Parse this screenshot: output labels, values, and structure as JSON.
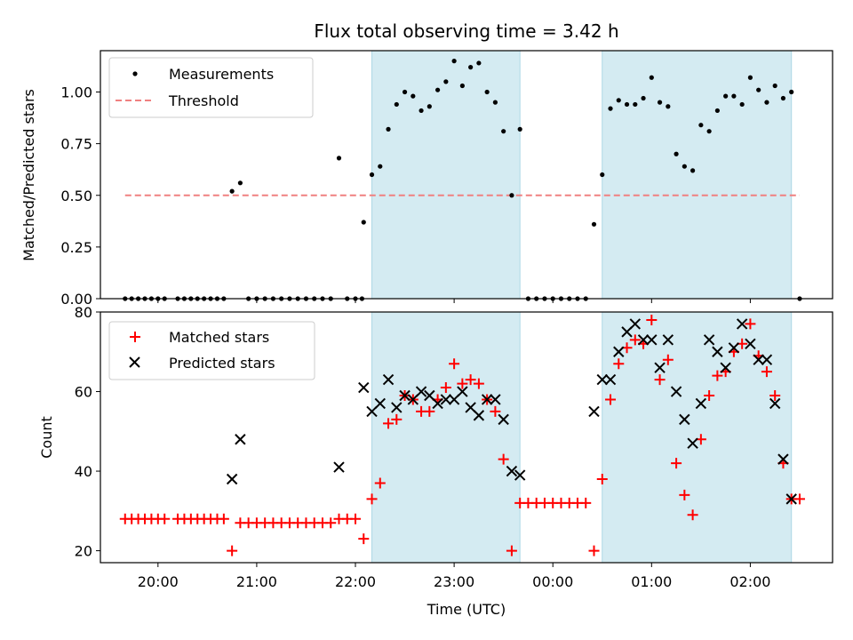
{
  "chart_data": {
    "title": "Flux total observing time = 3.42 h",
    "xlabel": "Time (UTC)",
    "x_ticks": [
      "20:00",
      "21:00",
      "22:00",
      "23:00",
      "00:00",
      "01:00",
      "02:00"
    ],
    "xlim": [
      "19:25",
      "02:50"
    ],
    "shaded_intervals": [
      [
        "22:10",
        "23:40"
      ],
      [
        "00:30",
        "02:25"
      ]
    ],
    "colors": {
      "shade": "#add8e6",
      "measurements": "#000000",
      "threshold": "#f08080",
      "matched": "#ff0000",
      "predicted": "#000000"
    },
    "panels": [
      {
        "type": "scatter",
        "ylabel": "Matched/Predicted stars",
        "ylim": [
          0,
          1.2
        ],
        "y_ticks": [
          "0.00",
          "0.25",
          "0.50",
          "0.75",
          "1.00"
        ],
        "legend_position": "upper-left",
        "series": [
          {
            "name": "Measurements",
            "marker": "dot",
            "points": [
              [
                "19:40",
                0
              ],
              [
                "19:44",
                0
              ],
              [
                "19:48",
                0
              ],
              [
                "19:52",
                0
              ],
              [
                "19:56",
                0
              ],
              [
                "20:00",
                0
              ],
              [
                "20:04",
                0
              ],
              [
                "20:12",
                0
              ],
              [
                "20:16",
                0
              ],
              [
                "20:20",
                0
              ],
              [
                "20:24",
                0
              ],
              [
                "20:28",
                0
              ],
              [
                "20:32",
                0
              ],
              [
                "20:36",
                0
              ],
              [
                "20:40",
                0
              ],
              [
                "20:45",
                0.52
              ],
              [
                "20:50",
                0.56
              ],
              [
                "20:55",
                0
              ],
              [
                "21:00",
                0
              ],
              [
                "21:05",
                0
              ],
              [
                "21:10",
                0
              ],
              [
                "21:15",
                0
              ],
              [
                "21:20",
                0
              ],
              [
                "21:25",
                0
              ],
              [
                "21:30",
                0
              ],
              [
                "21:35",
                0
              ],
              [
                "21:40",
                0
              ],
              [
                "21:45",
                0
              ],
              [
                "21:50",
                0.68
              ],
              [
                "21:55",
                0
              ],
              [
                "22:00",
                0
              ],
              [
                "22:04",
                0
              ],
              [
                "22:05",
                0.37
              ],
              [
                "22:10",
                0.6
              ],
              [
                "22:15",
                0.64
              ],
              [
                "22:20",
                0.82
              ],
              [
                "22:25",
                0.94
              ],
              [
                "22:30",
                1.0
              ],
              [
                "22:35",
                0.98
              ],
              [
                "22:40",
                0.91
              ],
              [
                "22:45",
                0.93
              ],
              [
                "22:50",
                1.01
              ],
              [
                "22:55",
                1.05
              ],
              [
                "23:00",
                1.15
              ],
              [
                "23:05",
                1.03
              ],
              [
                "23:10",
                1.12
              ],
              [
                "23:15",
                1.14
              ],
              [
                "23:20",
                1.0
              ],
              [
                "23:25",
                0.95
              ],
              [
                "23:30",
                0.81
              ],
              [
                "23:35",
                0.5
              ],
              [
                "23:40",
                0.82
              ],
              [
                "23:45",
                0
              ],
              [
                "23:50",
                0
              ],
              [
                "23:55",
                0
              ],
              [
                "00:00",
                0
              ],
              [
                "00:05",
                0
              ],
              [
                "00:10",
                0
              ],
              [
                "00:15",
                0
              ],
              [
                "00:20",
                0
              ],
              [
                "00:25",
                0.36
              ],
              [
                "00:30",
                0.6
              ],
              [
                "00:35",
                0.92
              ],
              [
                "00:40",
                0.96
              ],
              [
                "00:45",
                0.94
              ],
              [
                "00:50",
                0.94
              ],
              [
                "00:55",
                0.97
              ],
              [
                "01:00",
                1.07
              ],
              [
                "01:05",
                0.95
              ],
              [
                "01:10",
                0.93
              ],
              [
                "01:15",
                0.7
              ],
              [
                "01:20",
                0.64
              ],
              [
                "01:25",
                0.62
              ],
              [
                "01:30",
                0.84
              ],
              [
                "01:35",
                0.81
              ],
              [
                "01:40",
                0.91
              ],
              [
                "01:45",
                0.98
              ],
              [
                "01:50",
                0.98
              ],
              [
                "01:55",
                0.94
              ],
              [
                "02:00",
                1.07
              ],
              [
                "02:05",
                1.01
              ],
              [
                "02:10",
                0.95
              ],
              [
                "02:15",
                1.03
              ],
              [
                "02:20",
                0.97
              ],
              [
                "02:25",
                1.0
              ],
              [
                "02:30",
                0
              ]
            ]
          },
          {
            "name": "Threshold",
            "line": "dashed",
            "points": [
              [
                "19:40",
                0.5
              ],
              [
                "02:30",
                0.5
              ]
            ]
          }
        ]
      },
      {
        "type": "scatter",
        "ylabel": "Count",
        "ylim": [
          17,
          80
        ],
        "y_ticks": [
          "20",
          "40",
          "60",
          "80"
        ],
        "legend_position": "upper-left",
        "series": [
          {
            "name": "Matched stars",
            "marker": "plus",
            "points": [
              [
                "19:40",
                28
              ],
              [
                "19:44",
                28
              ],
              [
                "19:48",
                28
              ],
              [
                "19:52",
                28
              ],
              [
                "19:56",
                28
              ],
              [
                "20:00",
                28
              ],
              [
                "20:04",
                28
              ],
              [
                "20:12",
                28
              ],
              [
                "20:16",
                28
              ],
              [
                "20:20",
                28
              ],
              [
                "20:24",
                28
              ],
              [
                "20:28",
                28
              ],
              [
                "20:32",
                28
              ],
              [
                "20:36",
                28
              ],
              [
                "20:40",
                28
              ],
              [
                "20:45",
                20
              ],
              [
                "20:50",
                27
              ],
              [
                "20:55",
                27
              ],
              [
                "21:00",
                27
              ],
              [
                "21:05",
                27
              ],
              [
                "21:10",
                27
              ],
              [
                "21:15",
                27
              ],
              [
                "21:20",
                27
              ],
              [
                "21:25",
                27
              ],
              [
                "21:30",
                27
              ],
              [
                "21:35",
                27
              ],
              [
                "21:40",
                27
              ],
              [
                "21:45",
                27
              ],
              [
                "21:50",
                28
              ],
              [
                "21:55",
                28
              ],
              [
                "22:00",
                28
              ],
              [
                "22:05",
                23
              ],
              [
                "22:10",
                33
              ],
              [
                "22:15",
                37
              ],
              [
                "22:20",
                52
              ],
              [
                "22:25",
                53
              ],
              [
                "22:30",
                59
              ],
              [
                "22:35",
                58
              ],
              [
                "22:40",
                55
              ],
              [
                "22:45",
                55
              ],
              [
                "22:50",
                58
              ],
              [
                "22:55",
                61
              ],
              [
                "23:00",
                67
              ],
              [
                "23:05",
                62
              ],
              [
                "23:10",
                63
              ],
              [
                "23:15",
                62
              ],
              [
                "23:20",
                58
              ],
              [
                "23:25",
                55
              ],
              [
                "23:30",
                43
              ],
              [
                "23:35",
                20
              ],
              [
                "23:40",
                32
              ],
              [
                "23:45",
                32
              ],
              [
                "23:50",
                32
              ],
              [
                "23:55",
                32
              ],
              [
                "00:00",
                32
              ],
              [
                "00:05",
                32
              ],
              [
                "00:10",
                32
              ],
              [
                "00:15",
                32
              ],
              [
                "00:20",
                32
              ],
              [
                "00:25",
                20
              ],
              [
                "00:30",
                38
              ],
              [
                "00:35",
                58
              ],
              [
                "00:40",
                67
              ],
              [
                "00:45",
                71
              ],
              [
                "00:50",
                73
              ],
              [
                "00:55",
                72
              ],
              [
                "01:00",
                78
              ],
              [
                "01:05",
                63
              ],
              [
                "01:10",
                68
              ],
              [
                "01:15",
                42
              ],
              [
                "01:20",
                34
              ],
              [
                "01:25",
                29
              ],
              [
                "01:30",
                48
              ],
              [
                "01:35",
                59
              ],
              [
                "01:40",
                64
              ],
              [
                "01:45",
                65
              ],
              [
                "01:50",
                70
              ],
              [
                "01:55",
                72
              ],
              [
                "02:00",
                77
              ],
              [
                "02:05",
                69
              ],
              [
                "02:10",
                65
              ],
              [
                "02:15",
                59
              ],
              [
                "02:20",
                42
              ],
              [
                "02:25",
                33
              ],
              [
                "02:30",
                33
              ]
            ]
          },
          {
            "name": "Predicted stars",
            "marker": "x",
            "points": [
              [
                "20:45",
                38
              ],
              [
                "20:50",
                48
              ],
              [
                "21:50",
                41
              ],
              [
                "22:05",
                61
              ],
              [
                "22:10",
                55
              ],
              [
                "22:15",
                57
              ],
              [
                "22:20",
                63
              ],
              [
                "22:25",
                56
              ],
              [
                "22:30",
                59
              ],
              [
                "22:35",
                58
              ],
              [
                "22:40",
                60
              ],
              [
                "22:45",
                59
              ],
              [
                "22:50",
                57
              ],
              [
                "22:55",
                58
              ],
              [
                "23:00",
                58
              ],
              [
                "23:05",
                60
              ],
              [
                "23:10",
                56
              ],
              [
                "23:15",
                54
              ],
              [
                "23:20",
                58
              ],
              [
                "23:25",
                58
              ],
              [
                "23:30",
                53
              ],
              [
                "23:35",
                40
              ],
              [
                "23:40",
                39
              ],
              [
                "00:25",
                55
              ],
              [
                "00:30",
                63
              ],
              [
                "00:35",
                63
              ],
              [
                "00:40",
                70
              ],
              [
                "00:45",
                75
              ],
              [
                "00:50",
                77
              ],
              [
                "00:55",
                73
              ],
              [
                "01:00",
                73
              ],
              [
                "01:05",
                66
              ],
              [
                "01:10",
                73
              ],
              [
                "01:15",
                60
              ],
              [
                "01:20",
                53
              ],
              [
                "01:25",
                47
              ],
              [
                "01:30",
                57
              ],
              [
                "01:35",
                73
              ],
              [
                "01:40",
                70
              ],
              [
                "01:45",
                66
              ],
              [
                "01:50",
                71
              ],
              [
                "01:55",
                77
              ],
              [
                "02:00",
                72
              ],
              [
                "02:05",
                68
              ],
              [
                "02:10",
                68
              ],
              [
                "02:15",
                57
              ],
              [
                "02:20",
                43
              ],
              [
                "02:25",
                33
              ]
            ]
          }
        ]
      }
    ]
  }
}
